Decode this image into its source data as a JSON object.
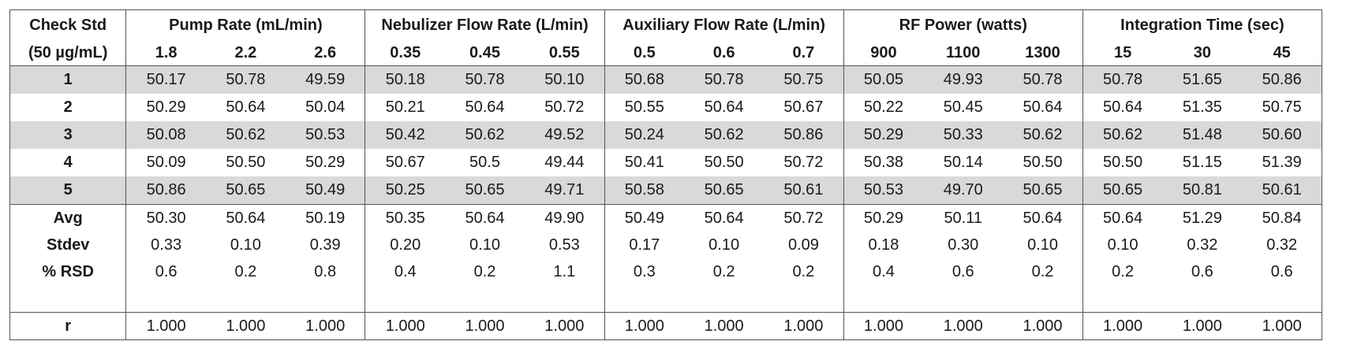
{
  "header": {
    "first_col_line1": "Check Std",
    "first_col_line2": "(50 µg/mL)",
    "groups": [
      {
        "title": "Pump Rate (mL/min)",
        "levels": [
          "1.8",
          "2.2",
          "2.6"
        ]
      },
      {
        "title": "Nebulizer Flow Rate (L/min)",
        "levels": [
          "0.35",
          "0.45",
          "0.55"
        ]
      },
      {
        "title": "Auxiliary Flow Rate (L/min)",
        "levels": [
          "0.5",
          "0.6",
          "0.7"
        ]
      },
      {
        "title": "RF Power (watts)",
        "levels": [
          "900",
          "1100",
          "1300"
        ]
      },
      {
        "title": "Integration Time (sec)",
        "levels": [
          "15",
          "30",
          "45"
        ]
      }
    ]
  },
  "rows": [
    {
      "label": "1",
      "values": [
        "50.17",
        "50.78",
        "49.59",
        "50.18",
        "50.78",
        "50.10",
        "50.68",
        "50.78",
        "50.75",
        "50.05",
        "49.93",
        "50.78",
        "50.78",
        "51.65",
        "50.86"
      ]
    },
    {
      "label": "2",
      "values": [
        "50.29",
        "50.64",
        "50.04",
        "50.21",
        "50.64",
        "50.72",
        "50.55",
        "50.64",
        "50.67",
        "50.22",
        "50.45",
        "50.64",
        "50.64",
        "51.35",
        "50.75"
      ]
    },
    {
      "label": "3",
      "values": [
        "50.08",
        "50.62",
        "50.53",
        "50.42",
        "50.62",
        "49.52",
        "50.24",
        "50.62",
        "50.86",
        "50.29",
        "50.33",
        "50.62",
        "50.62",
        "51.48",
        "50.60"
      ]
    },
    {
      "label": "4",
      "values": [
        "50.09",
        "50.50",
        "50.29",
        "50.67",
        "50.5",
        "49.44",
        "50.41",
        "50.50",
        "50.72",
        "50.38",
        "50.14",
        "50.50",
        "50.50",
        "51.15",
        "51.39"
      ]
    },
    {
      "label": "5",
      "values": [
        "50.86",
        "50.65",
        "50.49",
        "50.25",
        "50.65",
        "49.71",
        "50.58",
        "50.65",
        "50.61",
        "50.53",
        "49.70",
        "50.65",
        "50.65",
        "50.81",
        "50.61"
      ]
    }
  ],
  "stats": [
    {
      "label": "Avg",
      "values": [
        "50.30",
        "50.64",
        "50.19",
        "50.35",
        "50.64",
        "49.90",
        "50.49",
        "50.64",
        "50.72",
        "50.29",
        "50.11",
        "50.64",
        "50.64",
        "51.29",
        "50.84"
      ]
    },
    {
      "label": "Stdev",
      "values": [
        "0.33",
        "0.10",
        "0.39",
        "0.20",
        "0.10",
        "0.53",
        "0.17",
        "0.10",
        "0.09",
        "0.18",
        "0.30",
        "0.10",
        "0.10",
        "0.32",
        "0.32"
      ]
    },
    {
      "label": "% RSD",
      "values": [
        "0.6",
        "0.2",
        "0.8",
        "0.4",
        "0.2",
        "1.1",
        "0.3",
        "0.2",
        "0.2",
        "0.4",
        "0.6",
        "0.2",
        "0.2",
        "0.6",
        "0.6"
      ]
    }
  ],
  "r_row": {
    "label": "r",
    "values": [
      "1.000",
      "1.000",
      "1.000",
      "1.000",
      "1.000",
      "1.000",
      "1.000",
      "1.000",
      "1.000",
      "1.000",
      "1.000",
      "1.000",
      "1.000",
      "1.000",
      "1.000"
    ]
  },
  "colors": {
    "shade": "#d9d9d9",
    "border": "#555555"
  }
}
